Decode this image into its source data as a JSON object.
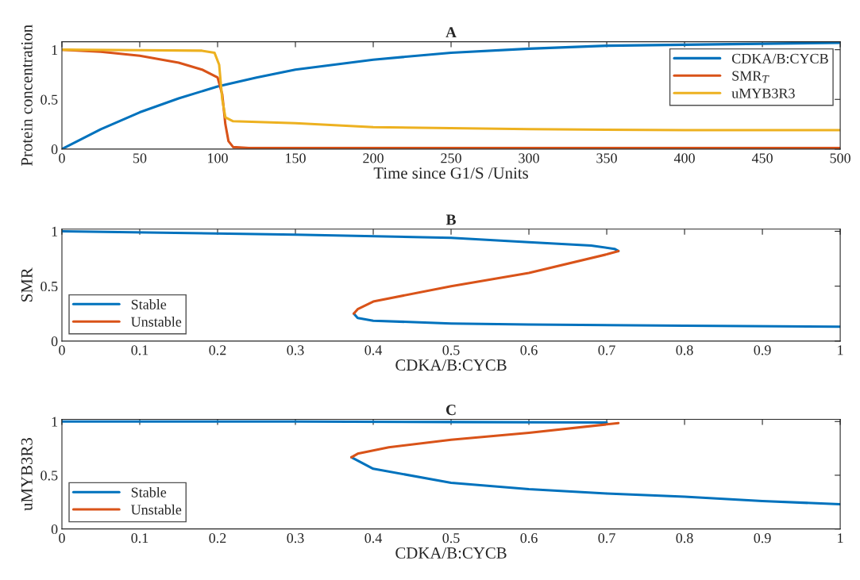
{
  "chart_data": [
    {
      "type": "line",
      "title": "A",
      "xlabel": "Time since G1/S /Units",
      "ylabel": "Protein concentration",
      "xlim": [
        0,
        500
      ],
      "xticks": [
        0,
        50,
        100,
        150,
        200,
        250,
        300,
        350,
        400,
        450,
        500
      ],
      "ylim": [
        0,
        1.08
      ],
      "yticks": [
        0,
        0.5,
        1
      ],
      "grid": false,
      "legend": "top right",
      "line_style": "solid",
      "marker": "none",
      "series": [
        {
          "name": "CDKA/B:CYCB",
          "color": "#0072bd",
          "x": [
            0,
            25,
            50,
            75,
            100,
            125,
            150,
            200,
            250,
            300,
            350,
            400,
            450,
            500
          ],
          "values": [
            0,
            0.2,
            0.37,
            0.51,
            0.63,
            0.72,
            0.8,
            0.9,
            0.97,
            1.01,
            1.04,
            1.05,
            1.06,
            1.07
          ]
        },
        {
          "name": "SMR$_{T}$",
          "color": "#d95319",
          "x": [
            0,
            25,
            50,
            75,
            90,
            100,
            103,
            105,
            107,
            110,
            120,
            500
          ],
          "values": [
            1.0,
            0.98,
            0.94,
            0.87,
            0.8,
            0.72,
            0.55,
            0.25,
            0.08,
            0.02,
            0.01,
            0.01
          ]
        },
        {
          "name": "uMYB3R3",
          "color": "#edb120",
          "x": [
            0,
            50,
            90,
            98,
            101,
            103,
            105,
            110,
            150,
            200,
            300,
            400,
            500
          ],
          "values": [
            1.0,
            0.995,
            0.99,
            0.97,
            0.85,
            0.5,
            0.32,
            0.28,
            0.26,
            0.22,
            0.2,
            0.19,
            0.19
          ]
        }
      ]
    },
    {
      "type": "line",
      "title": "B",
      "xlabel": "CDKA/B:CYCB",
      "ylabel": "SMR",
      "xlim": [
        0,
        1
      ],
      "xticks": [
        0,
        0.1,
        0.2,
        0.3,
        0.4,
        0.5,
        0.6,
        0.7,
        0.8,
        0.9,
        1
      ],
      "ylim": [
        0,
        1.02
      ],
      "yticks": [
        0,
        0.5,
        1
      ],
      "grid": false,
      "legend": "bottom left",
      "line_style": "solid",
      "marker": "none",
      "series": [
        {
          "name": "Stable",
          "color": "#0072bd",
          "x": [
            0,
            0.3,
            0.5,
            0.6,
            0.68,
            0.71,
            0.715,
            null,
            0.375,
            0.38,
            0.4,
            0.5,
            0.6,
            0.8,
            1.0
          ],
          "values": [
            1.0,
            0.97,
            0.94,
            0.9,
            0.87,
            0.84,
            0.82,
            null,
            0.25,
            0.21,
            0.185,
            0.16,
            0.15,
            0.14,
            0.13
          ]
        },
        {
          "name": "Unstable",
          "color": "#d95319",
          "x": [
            0.715,
            0.7,
            0.6,
            0.5,
            0.4,
            0.38,
            0.375
          ],
          "values": [
            0.82,
            0.79,
            0.62,
            0.5,
            0.36,
            0.29,
            0.25
          ]
        }
      ]
    },
    {
      "type": "line",
      "title": "C",
      "xlabel": "CDKA/B:CYCB",
      "ylabel": "uMYB3R3",
      "xlim": [
        0,
        1
      ],
      "xticks": [
        0,
        0.1,
        0.2,
        0.3,
        0.4,
        0.5,
        0.6,
        0.7,
        0.8,
        0.9,
        1
      ],
      "ylim": [
        0,
        1.02
      ],
      "yticks": [
        0,
        0.5,
        1
      ],
      "grid": false,
      "legend": "bottom left",
      "line_style": "solid",
      "marker": "none",
      "series": [
        {
          "name": "Stable",
          "color": "#0072bd",
          "x": [
            0,
            0.3,
            0.5,
            0.7,
            null,
            0.372,
            0.4,
            0.5,
            0.6,
            0.7,
            0.8,
            0.9,
            1.0
          ],
          "values": [
            1.0,
            1.0,
            0.995,
            0.99,
            null,
            0.667,
            0.56,
            0.43,
            0.37,
            0.33,
            0.3,
            0.26,
            0.23
          ]
        },
        {
          "name": "Unstable",
          "color": "#d95319",
          "x": [
            0.715,
            0.6,
            0.5,
            0.42,
            0.38,
            0.372
          ],
          "values": [
            0.985,
            0.895,
            0.83,
            0.76,
            0.7,
            0.667
          ]
        }
      ]
    }
  ]
}
